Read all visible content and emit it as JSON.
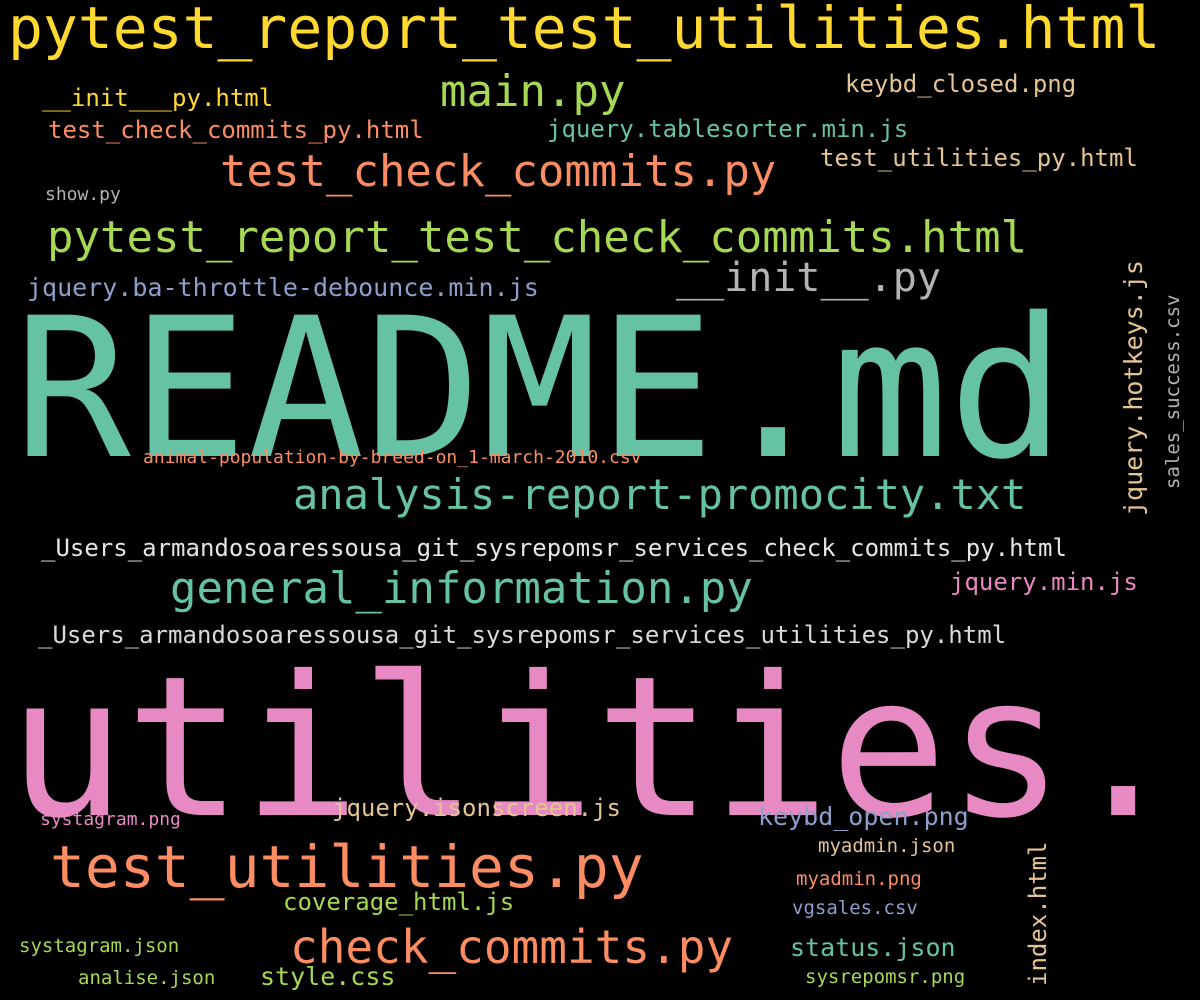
{
  "words": [
    {
      "text": "pytest_report_test_utilities.html",
      "color": "#ffd92f"
    },
    {
      "text": "main.py",
      "color": "#a6d854"
    },
    {
      "text": "keybd_closed.png",
      "color": "#e5c494"
    },
    {
      "text": "__init___py.html",
      "color": "#ffd92f"
    },
    {
      "text": "test_check_commits_py.html",
      "color": "#fc8d62"
    },
    {
      "text": "jquery.tablesorter.min.js",
      "color": "#66c2a5"
    },
    {
      "text": "test_utilities_py.html",
      "color": "#e5c494"
    },
    {
      "text": "test_check_commits.py",
      "color": "#fc8d62"
    },
    {
      "text": "show.py",
      "color": "#b3b3b3"
    },
    {
      "text": "pytest_report_test_check_commits.html",
      "color": "#a6d854"
    },
    {
      "text": "__init__.py",
      "color": "#b3b3b3"
    },
    {
      "text": "jquery.ba-throttle-debounce.min.js",
      "color": "#8da0cb"
    },
    {
      "text": "README.md",
      "color": "#66c2a5"
    },
    {
      "text": "jquery.hotkeys.js",
      "color": "#e5c494"
    },
    {
      "text": "sales_success.csv",
      "color": "#b3b3b3"
    },
    {
      "text": "animal-population-by-breed-on_1-march-2010.csv",
      "color": "#fc8d62"
    },
    {
      "text": "analysis-report-promocity.txt",
      "color": "#66c2a5"
    },
    {
      "text": "_Users_armandosoaressousa_git_sysrepomsr_services_check_commits_py.html",
      "color": "#e5e5e5"
    },
    {
      "text": "general_information.py",
      "color": "#66c2a5"
    },
    {
      "text": "jquery.min.js",
      "color": "#e78ac3"
    },
    {
      "text": "_Users_armandosoaressousa_git_sysrepomsr_services_utilities_py.html",
      "color": "#d9d9d9"
    },
    {
      "text": "utilities.py",
      "color": "#e78ac3"
    },
    {
      "text": "systagram.png",
      "color": "#e78ac3"
    },
    {
      "text": "jquery.isonscreen.js",
      "color": "#e5c494"
    },
    {
      "text": "keybd_open.png",
      "color": "#8da0cb"
    },
    {
      "text": "myadmin.json",
      "color": "#e5c494"
    },
    {
      "text": "test_utilities.py",
      "color": "#fc8d62"
    },
    {
      "text": "myadmin.png",
      "color": "#fc8d62"
    },
    {
      "text": "index.html",
      "color": "#e5c494"
    },
    {
      "text": "coverage_html.js",
      "color": "#a6d854"
    },
    {
      "text": "vgsales.csv",
      "color": "#8da0cb"
    },
    {
      "text": "systagram.json",
      "color": "#a6d854"
    },
    {
      "text": "check_commits.py",
      "color": "#fc8d62"
    },
    {
      "text": "status.json",
      "color": "#66c2a5"
    },
    {
      "text": "analise.json",
      "color": "#a6d854"
    },
    {
      "text": "style.css",
      "color": "#a6d854"
    },
    {
      "text": "sysrepomsr.png",
      "color": "#a6d854"
    }
  ]
}
